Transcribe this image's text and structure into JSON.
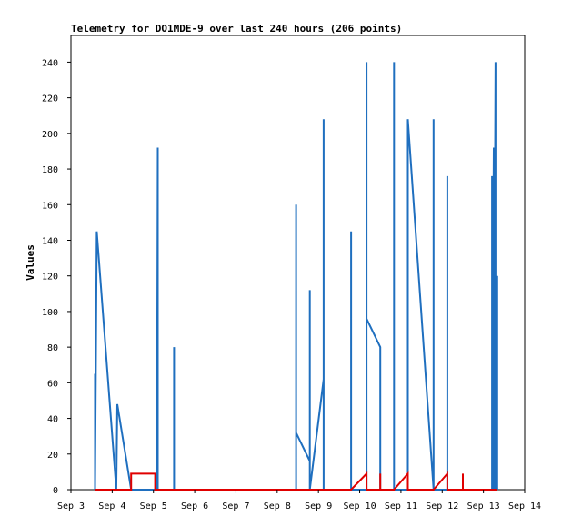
{
  "chart_data": {
    "type": "line",
    "title": "Telemetry for DO1MDE-9 over last 240 hours (206 points)",
    "xlabel": "",
    "ylabel": "Values",
    "xlim": [
      "2023-09-03",
      "2023-09-14"
    ],
    "ylim": [
      0,
      255
    ],
    "x_ticks": [
      "Sep 3",
      "Sep 4",
      "Sep 5",
      "Sep 6",
      "Sep 7",
      "Sep 8",
      "Sep 9",
      "Sep 10",
      "Sep 11",
      "Sep 12",
      "Sep 13",
      "Sep 14"
    ],
    "y_ticks": [
      0,
      20,
      40,
      60,
      80,
      100,
      120,
      140,
      160,
      180,
      200,
      220,
      240
    ],
    "grid": false,
    "legend": "none",
    "series": [
      {
        "color": "#1f6fbf",
        "points": [
          [
            "2023-09-03 14:00",
            0
          ],
          [
            "2023-09-03 14:00",
            65
          ],
          [
            "2023-09-03 14:00",
            0
          ],
          [
            "2023-09-03 15:00",
            145
          ],
          [
            "2023-09-04 02:24",
            0
          ],
          [
            "2023-09-04 03:00",
            48
          ],
          [
            "2023-09-04 11:00",
            0
          ],
          [
            "2023-09-05 02:00",
            0
          ],
          [
            "2023-09-05 02:00",
            48
          ],
          [
            "2023-09-05 02:00",
            0
          ],
          [
            "2023-09-05 02:30",
            192
          ],
          [
            "2023-09-05 02:30",
            0
          ],
          [
            "2023-09-05 12:00",
            0
          ],
          [
            "2023-09-05 12:00",
            80
          ],
          [
            "2023-09-05 12:00",
            0
          ],
          [
            "2023-09-08 11:00",
            0
          ],
          [
            "2023-09-08 11:00",
            160
          ],
          [
            "2023-09-08 11:00",
            32
          ],
          [
            "2023-09-08 19:00",
            16
          ],
          [
            "2023-09-08 19:00",
            112
          ],
          [
            "2023-09-08 19:00",
            0
          ],
          [
            "2023-09-09 03:00",
            62
          ],
          [
            "2023-09-09 03:00",
            208
          ],
          [
            "2023-09-09 03:00",
            0
          ],
          [
            "2023-09-09 19:00",
            0
          ],
          [
            "2023-09-09 19:00",
            145
          ],
          [
            "2023-09-09 19:00",
            0
          ],
          [
            "2023-09-10 04:00",
            0
          ],
          [
            "2023-09-10 04:00",
            240
          ],
          [
            "2023-09-10 04:00",
            96
          ],
          [
            "2023-09-10 12:00",
            80
          ],
          [
            "2023-09-10 12:00",
            0
          ],
          [
            "2023-09-10 20:00",
            0
          ],
          [
            "2023-09-10 20:00",
            240
          ],
          [
            "2023-09-10 20:00",
            0
          ],
          [
            "2023-09-11 04:00",
            0
          ],
          [
            "2023-09-11 04:00",
            208
          ],
          [
            "2023-09-11 19:00",
            0
          ],
          [
            "2023-09-11 19:00",
            208
          ],
          [
            "2023-09-11 19:00",
            0
          ],
          [
            "2023-09-12 03:00",
            0
          ],
          [
            "2023-09-12 03:00",
            176
          ],
          [
            "2023-09-12 03:00",
            0
          ],
          [
            "2023-09-13 05:00",
            0
          ],
          [
            "2023-09-13 05:00",
            176
          ],
          [
            "2023-09-13 05:00",
            0
          ],
          [
            "2023-09-13 06:00",
            192
          ],
          [
            "2023-09-13 06:00",
            0
          ],
          [
            "2023-09-13 07:00",
            240
          ],
          [
            "2023-09-13 07:00",
            0
          ],
          [
            "2023-09-13 08:00",
            120
          ],
          [
            "2023-09-13 08:00",
            0
          ]
        ]
      },
      {
        "color": "#e00000",
        "points": [
          [
            "2023-09-03 14:00",
            0
          ],
          [
            "2023-09-04 11:00",
            0
          ],
          [
            "2023-09-04 11:00",
            9
          ],
          [
            "2023-09-05 01:00",
            9
          ],
          [
            "2023-09-05 01:00",
            0
          ],
          [
            "2023-09-09 19:00",
            0
          ],
          [
            "2023-09-10 04:00",
            9
          ],
          [
            "2023-09-10 04:00",
            0
          ],
          [
            "2023-09-10 12:00",
            0
          ],
          [
            "2023-09-10 12:00",
            9
          ],
          [
            "2023-09-10 12:00",
            0
          ],
          [
            "2023-09-10 20:00",
            0
          ],
          [
            "2023-09-11 04:00",
            9
          ],
          [
            "2023-09-11 04:00",
            0
          ],
          [
            "2023-09-11 19:00",
            0
          ],
          [
            "2023-09-12 03:00",
            9
          ],
          [
            "2023-09-12 03:00",
            0
          ],
          [
            "2023-09-12 12:00",
            0
          ],
          [
            "2023-09-12 12:00",
            9
          ],
          [
            "2023-09-12 12:00",
            0
          ],
          [
            "2023-09-13 08:00",
            0
          ]
        ]
      }
    ]
  }
}
